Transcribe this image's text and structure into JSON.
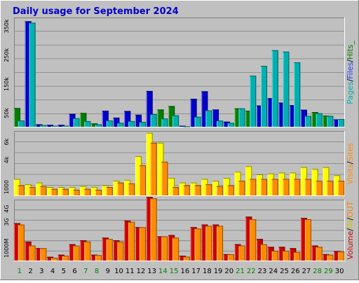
{
  "title": "Daily usage for September 2024",
  "colors": {
    "background": "#c0c0c0",
    "title": "#0000cc",
    "pages": "#0000cc",
    "files": "#1f3fff",
    "hits": "#00b0b0",
    "visits": "#ffff00",
    "sites": "#ff8c00",
    "kb_in": "#c8c800",
    "kb_out": "#ff8000",
    "volume": "#cc0000",
    "weekend": "#008000",
    "weekday": "#000000"
  },
  "chart_data": [
    {
      "type": "bar",
      "panel": "hits",
      "ylabel": "Pages / Files / Hits",
      "ylabel_parts": [
        "Pages",
        "/",
        "Files",
        "/",
        "Hits_"
      ],
      "ytick_labels": [
        "50k",
        "150k",
        "250k",
        "350k"
      ],
      "ytick_values": [
        50000,
        150000,
        250000,
        350000
      ],
      "ylim": [
        0,
        380000
      ],
      "categories": [
        "1",
        "2",
        "3",
        "4",
        "5",
        "6",
        "7",
        "8",
        "9",
        "10",
        "11",
        "12",
        "13",
        "14",
        "15",
        "16",
        "17",
        "18",
        "19",
        "20",
        "21",
        "22",
        "23",
        "24",
        "25",
        "26",
        "27",
        "28",
        "29",
        "30"
      ],
      "series": [
        {
          "name": "Pages",
          "values": [
            67000,
            367000,
            11000,
            9000,
            9000,
            47000,
            50000,
            14000,
            58000,
            34000,
            57000,
            44000,
            126000,
            62000,
            74000,
            6000,
            99000,
            125000,
            62000,
            20000,
            66000,
            58000,
            76000,
            101000,
            86000,
            77000,
            61000,
            53000,
            41000,
            28000
          ]
        },
        {
          "name": "Hits",
          "values": [
            24000,
            362000,
            8000,
            6000,
            6000,
            32000,
            22000,
            11000,
            24000,
            16000,
            22000,
            19000,
            46000,
            31000,
            42000,
            4000,
            37000,
            59000,
            24000,
            16000,
            66000,
            179000,
            213000,
            267000,
            262000,
            225000,
            40000,
            49000,
            40000,
            29000
          ]
        }
      ]
    },
    {
      "type": "bar",
      "panel": "visits",
      "ylabel": "Visits / Sites",
      "ylabel_parts": [
        "Visits",
        "/",
        "Sites"
      ],
      "ytick_labels": [
        "1000",
        "4k",
        "6k"
      ],
      "ytick_values": [
        1000,
        4000,
        6000
      ],
      "ylim": [
        0,
        7200
      ],
      "categories": [
        "1",
        "2",
        "3",
        "4",
        "5",
        "6",
        "7",
        "8",
        "9",
        "10",
        "11",
        "12",
        "13",
        "14",
        "15",
        "16",
        "17",
        "18",
        "19",
        "20",
        "21",
        "22",
        "23",
        "24",
        "25",
        "26",
        "27",
        "28",
        "29",
        "30"
      ],
      "series": [
        {
          "name": "Visits",
          "values": [
            1900,
            1300,
            1500,
            1000,
            1000,
            1000,
            1100,
            1000,
            1200,
            1700,
            1800,
            4400,
            7000,
            5900,
            2000,
            1500,
            1500,
            1900,
            1700,
            2000,
            2700,
            3300,
            2400,
            2500,
            2600,
            2600,
            3200,
            3000,
            3200,
            2300
          ]
        },
        {
          "name": "Sites",
          "values": [
            1200,
            1000,
            1100,
            800,
            800,
            700,
            800,
            700,
            1000,
            1500,
            1400,
            3400,
            5900,
            3800,
            1000,
            1200,
            1200,
            1300,
            1100,
            1200,
            1700,
            1900,
            1900,
            1900,
            1900,
            1900,
            1900,
            1700,
            1700,
            1700
          ]
        }
      ]
    },
    {
      "type": "bar",
      "panel": "volume",
      "ylabel": "Volume / IN / OUT",
      "ylabel_parts": [
        "Volume",
        "/",
        "IN",
        "/",
        "OUT"
      ],
      "ytick_labels": [
        "1000M",
        "3G",
        "4G"
      ],
      "ytick_values": [
        1000,
        3000,
        4000
      ],
      "ylim": [
        0,
        4700
      ],
      "categories": [
        "1",
        "2",
        "3",
        "4",
        "5",
        "6",
        "7",
        "8",
        "9",
        "10",
        "11",
        "12",
        "13",
        "14",
        "15",
        "16",
        "17",
        "18",
        "19",
        "20",
        "21",
        "22",
        "23",
        "24",
        "25",
        "26",
        "27",
        "28",
        "29",
        "30"
      ],
      "series": [
        {
          "name": "Volume",
          "values": [
            2900,
            1500,
            1000,
            340,
            500,
            1300,
            1600,
            500,
            1800,
            1600,
            3100,
            2600,
            4900,
            1900,
            2000,
            420,
            2600,
            2800,
            2800,
            540,
            1300,
            3400,
            1700,
            1100,
            1100,
            1000,
            3300,
            1200,
            540,
            770
          ]
        },
        {
          "name": "OUT",
          "values": [
            2800,
            1200,
            1000,
            270,
            430,
            1200,
            1500,
            470,
            1700,
            1500,
            3000,
            2600,
            4800,
            1900,
            1800,
            350,
            2500,
            2700,
            2700,
            530,
            1200,
            3200,
            1300,
            800,
            800,
            700,
            3200,
            1100,
            500,
            740
          ]
        }
      ]
    }
  ],
  "days": [
    "1",
    "2",
    "3",
    "4",
    "5",
    "6",
    "7",
    "8",
    "9",
    "10",
    "11",
    "12",
    "13",
    "14",
    "15",
    "16",
    "17",
    "18",
    "19",
    "20",
    "21",
    "22",
    "23",
    "24",
    "25",
    "26",
    "27",
    "28",
    "29",
    "30"
  ],
  "weekend_days": [
    "1",
    "7",
    "8",
    "14",
    "15",
    "21",
    "22",
    "28",
    "29"
  ]
}
